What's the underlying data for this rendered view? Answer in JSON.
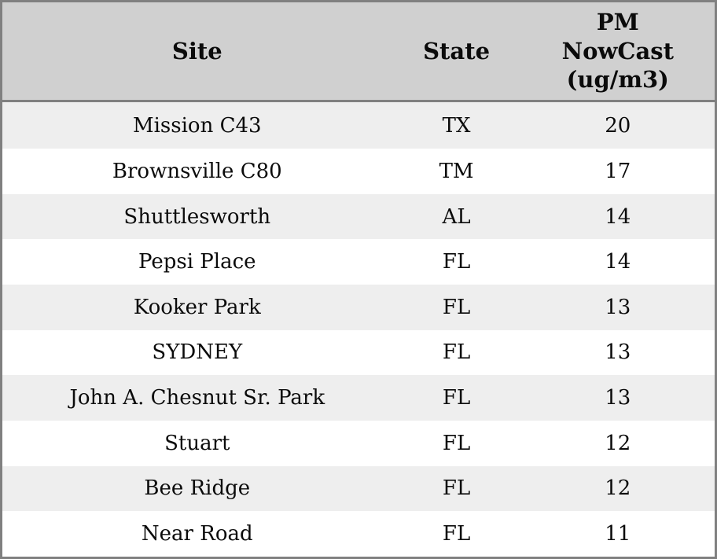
{
  "table": {
    "columns": [
      {
        "label": "Site"
      },
      {
        "label": "State"
      },
      {
        "label": "PM\nNowCast\n(ug/m3)"
      }
    ],
    "rows": [
      {
        "site": "Mission C43",
        "state": "TX",
        "pm": "20"
      },
      {
        "site": "Brownsville C80",
        "state": "TM",
        "pm": "17"
      },
      {
        "site": "Shuttlesworth",
        "state": "AL",
        "pm": "14"
      },
      {
        "site": "Pepsi Place",
        "state": "FL",
        "pm": "14"
      },
      {
        "site": "Kooker Park",
        "state": "FL",
        "pm": "13"
      },
      {
        "site": "SYDNEY",
        "state": "FL",
        "pm": "13"
      },
      {
        "site": "John A. Chesnut Sr. Park",
        "state": "FL",
        "pm": "13"
      },
      {
        "site": "Stuart",
        "state": "FL",
        "pm": "12"
      },
      {
        "site": "Bee Ridge",
        "state": "FL",
        "pm": "12"
      },
      {
        "site": "Near Road",
        "state": "FL",
        "pm": "11"
      }
    ]
  },
  "chart_data": {
    "type": "table",
    "title": "",
    "columns": [
      "Site",
      "State",
      "PM NowCast (ug/m3)"
    ],
    "rows": [
      [
        "Mission C43",
        "TX",
        20
      ],
      [
        "Brownsville C80",
        "TM",
        17
      ],
      [
        "Shuttlesworth",
        "AL",
        14
      ],
      [
        "Pepsi Place",
        "FL",
        14
      ],
      [
        "Kooker Park",
        "FL",
        13
      ],
      [
        "SYDNEY",
        "FL",
        13
      ],
      [
        "John A. Chesnut Sr. Park",
        "FL",
        13
      ],
      [
        "Stuart",
        "FL",
        12
      ],
      [
        "Bee Ridge",
        "FL",
        12
      ],
      [
        "Near Road",
        "FL",
        11
      ]
    ],
    "layout": {
      "zebra_striping": true,
      "header_background": "#d0d0d0",
      "odd_row_background": "#eeeeee",
      "even_row_background": "#ffffff",
      "frame_color": "#808080"
    }
  },
  "colors": {
    "border": "#808080",
    "header_bg": "#d0d0d0",
    "row_odd_bg": "#eeeeee",
    "row_even_bg": "#ffffff",
    "text": "#0b0b0b"
  }
}
